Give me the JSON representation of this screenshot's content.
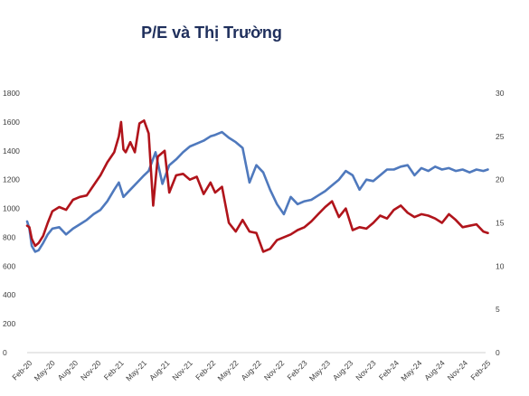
{
  "chart_data": {
    "type": "line",
    "title": "P/E và Thị Trường",
    "xlabel": "",
    "ylabel": "",
    "x_ticks": [
      "Feb-20",
      "May-20",
      "Aug-20",
      "Nov-20",
      "Feb-21",
      "May-21",
      "Aug-21",
      "Nov-21",
      "Feb-22",
      "May-22",
      "Aug-22",
      "Nov-22",
      "Feb-23",
      "May-23",
      "Aug-23",
      "Nov-23",
      "Feb-24",
      "May-24",
      "Aug-24",
      "Nov-24",
      "Feb-25"
    ],
    "y_left_ticks": [
      "0",
      "200",
      "400",
      "600",
      "800",
      "1000",
      "1200",
      "1400",
      "1600",
      "1800"
    ],
    "y_right_ticks": [
      "0",
      "5",
      "10",
      "15",
      "20",
      "25",
      "30"
    ],
    "ylim_left": [
      0,
      1800
    ],
    "ylim_right": [
      0,
      30
    ],
    "grid": false,
    "series": [
      {
        "axis": "left",
        "color": "#4f79bd",
        "x": [
          0,
          0.1,
          0.2,
          0.35,
          0.5,
          0.7,
          0.9,
          1.1,
          1.4,
          1.7,
          2.0,
          2.3,
          2.6,
          2.9,
          3.2,
          3.5,
          3.8,
          4.0,
          4.2,
          4.5,
          4.8,
          5.1,
          5.3,
          5.6,
          5.9,
          6.2,
          6.5,
          6.8,
          7.1,
          7.4,
          7.7,
          8.0,
          8.2,
          8.5,
          8.8,
          9.1,
          9.4,
          9.7,
          10.0,
          10.3,
          10.6,
          10.9,
          11.2,
          11.5,
          11.8,
          12.1,
          12.4,
          12.7,
          13.0,
          13.3,
          13.6,
          13.9,
          14.2,
          14.5,
          14.8,
          15.1,
          15.4,
          15.7,
          16.0,
          16.3,
          16.6,
          16.9,
          17.2,
          17.5,
          17.8,
          18.1,
          18.4,
          18.7,
          19.0,
          19.3,
          19.6,
          19.9,
          20.1
        ],
        "values": [
          910,
          860,
          740,
          700,
          710,
          760,
          820,
          860,
          870,
          820,
          860,
          890,
          920,
          960,
          990,
          1050,
          1130,
          1180,
          1080,
          1130,
          1180,
          1230,
          1260,
          1390,
          1170,
          1300,
          1340,
          1390,
          1430,
          1450,
          1470,
          1500,
          1510,
          1530,
          1490,
          1460,
          1420,
          1180,
          1300,
          1250,
          1130,
          1030,
          960,
          1080,
          1030,
          1050,
          1060,
          1090,
          1120,
          1160,
          1200,
          1260,
          1230,
          1130,
          1200,
          1190,
          1230,
          1270,
          1270,
          1290,
          1300,
          1230,
          1280,
          1260,
          1290,
          1270,
          1280,
          1260,
          1270,
          1250,
          1270,
          1260,
          1270
        ]
      },
      {
        "axis": "left",
        "color": "#b0141b",
        "x": [
          0,
          0.1,
          0.2,
          0.35,
          0.5,
          0.7,
          0.9,
          1.1,
          1.4,
          1.7,
          2.0,
          2.3,
          2.6,
          2.9,
          3.2,
          3.5,
          3.8,
          4.0,
          4.1,
          4.2,
          4.3,
          4.5,
          4.7,
          4.9,
          5.1,
          5.3,
          5.5,
          5.7,
          6.0,
          6.2,
          6.5,
          6.8,
          7.1,
          7.4,
          7.7,
          8.0,
          8.2,
          8.5,
          8.8,
          9.1,
          9.4,
          9.7,
          10.0,
          10.3,
          10.6,
          10.9,
          11.2,
          11.5,
          11.8,
          12.1,
          12.4,
          12.7,
          13.0,
          13.3,
          13.6,
          13.9,
          14.2,
          14.5,
          14.8,
          15.1,
          15.4,
          15.7,
          16.0,
          16.3,
          16.6,
          16.9,
          17.2,
          17.5,
          17.8,
          18.1,
          18.4,
          18.7,
          19.0,
          19.3,
          19.6,
          19.9,
          20.1
        ],
        "values": [
          880,
          870,
          790,
          740,
          760,
          810,
          900,
          980,
          1010,
          990,
          1060,
          1080,
          1090,
          1160,
          1230,
          1320,
          1390,
          1500,
          1600,
          1410,
          1390,
          1460,
          1390,
          1590,
          1610,
          1520,
          1020,
          1360,
          1400,
          1110,
          1230,
          1240,
          1200,
          1220,
          1100,
          1180,
          1110,
          1150,
          900,
          840,
          920,
          840,
          830,
          700,
          720,
          780,
          800,
          820,
          850,
          870,
          910,
          960,
          1010,
          1050,
          940,
          1000,
          850,
          870,
          860,
          900,
          950,
          930,
          990,
          1020,
          970,
          940,
          960,
          950,
          930,
          900,
          960,
          920,
          870,
          880,
          890,
          840,
          830
        ]
      }
    ]
  }
}
